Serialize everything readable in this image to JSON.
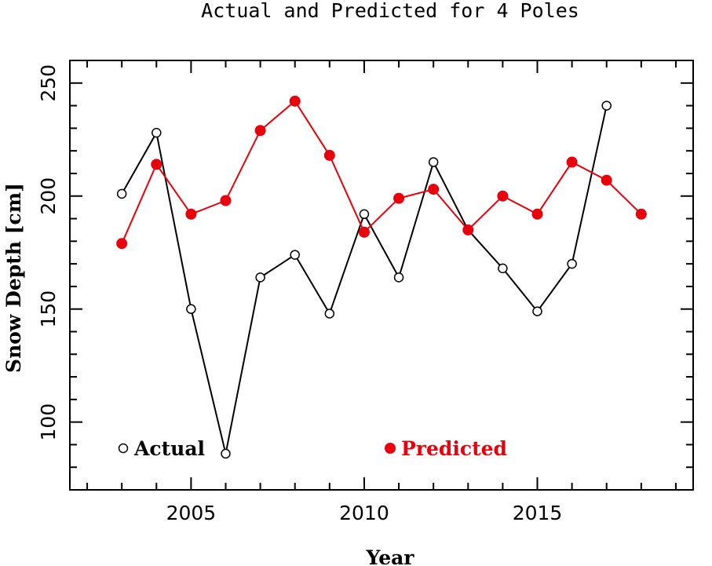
{
  "chart_data": {
    "type": "line",
    "title": "Actual and Predicted for  4 Poles",
    "xlabel": "Year",
    "ylabel": "Snow Depth [cm]",
    "xlim": [
      2001.5,
      2019.5
    ],
    "ylim": [
      70,
      260
    ],
    "x_ticks": [
      2005,
      2010,
      2015
    ],
    "y_ticks": [
      100,
      150,
      200,
      250
    ],
    "grid": false,
    "legend_placement": "bottom",
    "series": [
      {
        "name": "Actual",
        "color": "#000000",
        "marker": "open-circle",
        "x": [
          2003,
          2004,
          2005,
          2006,
          2007,
          2008,
          2009,
          2010,
          2011,
          2012,
          2013,
          2014,
          2015,
          2016,
          2017
        ],
        "values": [
          201,
          228,
          150,
          86,
          164,
          174,
          148,
          192,
          164,
          215,
          185,
          168,
          149,
          170,
          240
        ]
      },
      {
        "name": "Predicted",
        "color": "#e8000b",
        "marker": "filled-circle",
        "x": [
          2003,
          2004,
          2005,
          2006,
          2007,
          2008,
          2009,
          2010,
          2011,
          2012,
          2013,
          2014,
          2015,
          2016,
          2017,
          2018
        ],
        "values": [
          179,
          214,
          192,
          198,
          229,
          242,
          218,
          184,
          199,
          203,
          185,
          200,
          192,
          215,
          207,
          192
        ]
      }
    ]
  }
}
